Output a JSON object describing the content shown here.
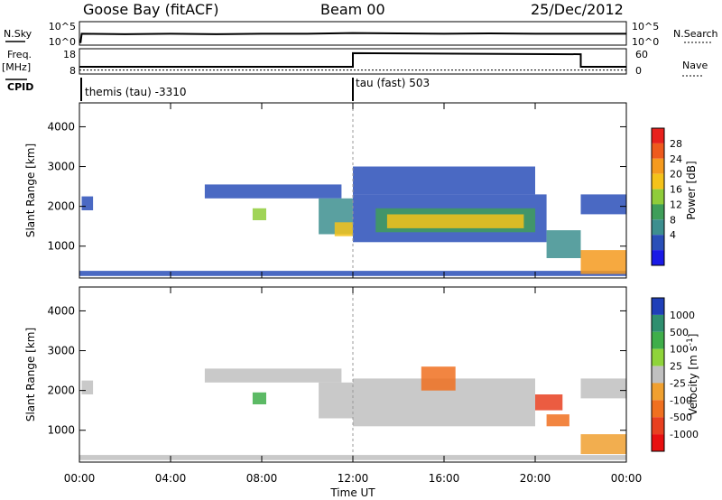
{
  "header": {
    "station": "Goose Bay (fitACF)",
    "beam": "Beam 00",
    "date": "25/Dec/2012"
  },
  "strip_labels": {
    "nsky": "N.Sky",
    "nsky_top": "10^5",
    "nsky_bottom": "10^0",
    "nsearch": "N.Search",
    "nsearch_top": "10^5",
    "nsearch_bottom": "10^0",
    "freq": "Freq.",
    "freq_unit": "[MHz]",
    "freq_top": "18",
    "freq_bottom": "8",
    "nave": "Nave",
    "nave_top": "60",
    "nave_bottom": "0",
    "cpid": "CPID"
  },
  "cpid_entries": [
    {
      "label": "themis (tau) -3310",
      "start_hour": 0
    },
    {
      "label": "tau (fast) 503",
      "start_hour": 12
    }
  ],
  "power_colorbar": {
    "title": "Power [dB]",
    "ticks": [
      "28",
      "24",
      "20",
      "16",
      "12",
      "8",
      "4"
    ],
    "colors": [
      "#e8211d",
      "#ee5a1d",
      "#f59a1e",
      "#f4c21a",
      "#8fcc3a",
      "#3f9e5a",
      "#3d8f8f",
      "#2a4fb8",
      "#1a1ae6"
    ]
  },
  "velocity_colorbar": {
    "title": "Velocity [m s-1]",
    "ticks": [
      "1000",
      "500",
      "100",
      "25",
      "-25",
      "-100",
      "-500",
      "-1000"
    ],
    "colors": [
      "#1f3fb8",
      "#2f8f6f",
      "#3fae4a",
      "#8fd43a",
      "#c0c0c0",
      "#f0a030",
      "#f07020",
      "#e84020",
      "#e81010"
    ]
  },
  "chart_data": [
    {
      "type": "line",
      "name": "N.Sky",
      "x": [
        0,
        0.05,
        0.1,
        2,
        4,
        6,
        8,
        10,
        12,
        14,
        16,
        18,
        20,
        22,
        24
      ],
      "values": [
        0.3,
        0.3,
        2.4,
        2.3,
        2.4,
        2.3,
        2.4,
        2.4,
        2.6,
        2.5,
        2.4,
        2.5,
        2.4,
        2.4,
        2.4
      ],
      "ylim": [
        0,
        5
      ]
    },
    {
      "type": "line",
      "name": "Freq.",
      "x": [
        0,
        12,
        12,
        22,
        22,
        24
      ],
      "values": [
        10.5,
        10.5,
        16.8,
        16.3,
        10.5,
        10.5
      ],
      "ylim": [
        8,
        18
      ]
    },
    {
      "type": "line",
      "name": "Nave",
      "x": [
        0,
        24
      ],
      "values": [
        6,
        6
      ],
      "ylim": [
        0,
        60
      ]
    },
    {
      "type": "heatmap",
      "name": "Power",
      "xlabel": "",
      "ylabel": "Slant Range [km]",
      "xlim": [
        0,
        24
      ],
      "ylim": [
        200,
        4600
      ],
      "xticks": [
        "00:00",
        "04:00",
        "08:00",
        "12:00",
        "16:00",
        "20:00",
        "00:00"
      ],
      "yticks": [
        1000,
        2000,
        3000,
        4000
      ],
      "zlim": [
        0,
        32
      ],
      "regions": [
        {
          "x0": 0.0,
          "x1": 24.0,
          "y0": 250,
          "y1": 380,
          "v": 6
        },
        {
          "x0": 0.1,
          "x1": 0.6,
          "y0": 1900,
          "y1": 2250,
          "v": 5
        },
        {
          "x0": 5.5,
          "x1": 11.5,
          "y0": 2200,
          "y1": 2550,
          "v": 4
        },
        {
          "x0": 7.6,
          "x1": 8.2,
          "y0": 1650,
          "y1": 1950,
          "v": 16
        },
        {
          "x0": 10.5,
          "x1": 12.0,
          "y0": 1300,
          "y1": 2200,
          "v": 8
        },
        {
          "x0": 11.2,
          "x1": 12.0,
          "y0": 1250,
          "y1": 1600,
          "v": 20
        },
        {
          "x0": 12.0,
          "x1": 20.5,
          "y0": 1100,
          "y1": 2300,
          "v": 6
        },
        {
          "x0": 13.0,
          "x1": 20.0,
          "y0": 1350,
          "y1": 1950,
          "v": 13
        },
        {
          "x0": 13.5,
          "x1": 19.5,
          "y0": 1450,
          "y1": 1800,
          "v": 18
        },
        {
          "x0": 12.0,
          "x1": 20.0,
          "y0": 2300,
          "y1": 3000,
          "v": 5
        },
        {
          "x0": 20.5,
          "x1": 22.0,
          "y0": 700,
          "y1": 1400,
          "v": 8
        },
        {
          "x0": 22.0,
          "x1": 24.0,
          "y0": 300,
          "y1": 900,
          "v": 24
        },
        {
          "x0": 22.0,
          "x1": 24.0,
          "y0": 1800,
          "y1": 2300,
          "v": 5
        }
      ]
    },
    {
      "type": "heatmap",
      "name": "Velocity",
      "xlabel": "Time UT",
      "ylabel": "Slant Range [km]",
      "xlim": [
        0,
        24
      ],
      "ylim": [
        200,
        4600
      ],
      "xticks": [
        "00:00",
        "04:00",
        "08:00",
        "12:00",
        "16:00",
        "20:00",
        "00:00"
      ],
      "yticks": [
        1000,
        2000,
        3000,
        4000
      ],
      "regions": [
        {
          "x0": 0.0,
          "x1": 24.0,
          "y0": 250,
          "y1": 380,
          "v": 0
        },
        {
          "x0": 0.1,
          "x1": 0.6,
          "y0": 1900,
          "y1": 2250,
          "v": 0
        },
        {
          "x0": 5.5,
          "x1": 11.5,
          "y0": 2200,
          "y1": 2550,
          "v": 0
        },
        {
          "x0": 7.6,
          "x1": 8.2,
          "y0": 1650,
          "y1": 1950,
          "v": 100
        },
        {
          "x0": 10.5,
          "x1": 12.0,
          "y0": 1300,
          "y1": 2200,
          "v": 0
        },
        {
          "x0": 12.0,
          "x1": 20.0,
          "y0": 1100,
          "y1": 2300,
          "v": 0
        },
        {
          "x0": 15.0,
          "x1": 16.5,
          "y0": 2000,
          "y1": 2600,
          "v": -150
        },
        {
          "x0": 20.0,
          "x1": 21.2,
          "y0": 1500,
          "y1": 1900,
          "v": -700
        },
        {
          "x0": 20.5,
          "x1": 21.5,
          "y0": 1100,
          "y1": 1400,
          "v": -150
        },
        {
          "x0": 22.0,
          "x1": 24.0,
          "y0": 400,
          "y1": 900,
          "v": -50
        },
        {
          "x0": 22.0,
          "x1": 24.0,
          "y0": 1800,
          "y1": 2300,
          "v": 0
        }
      ]
    }
  ]
}
